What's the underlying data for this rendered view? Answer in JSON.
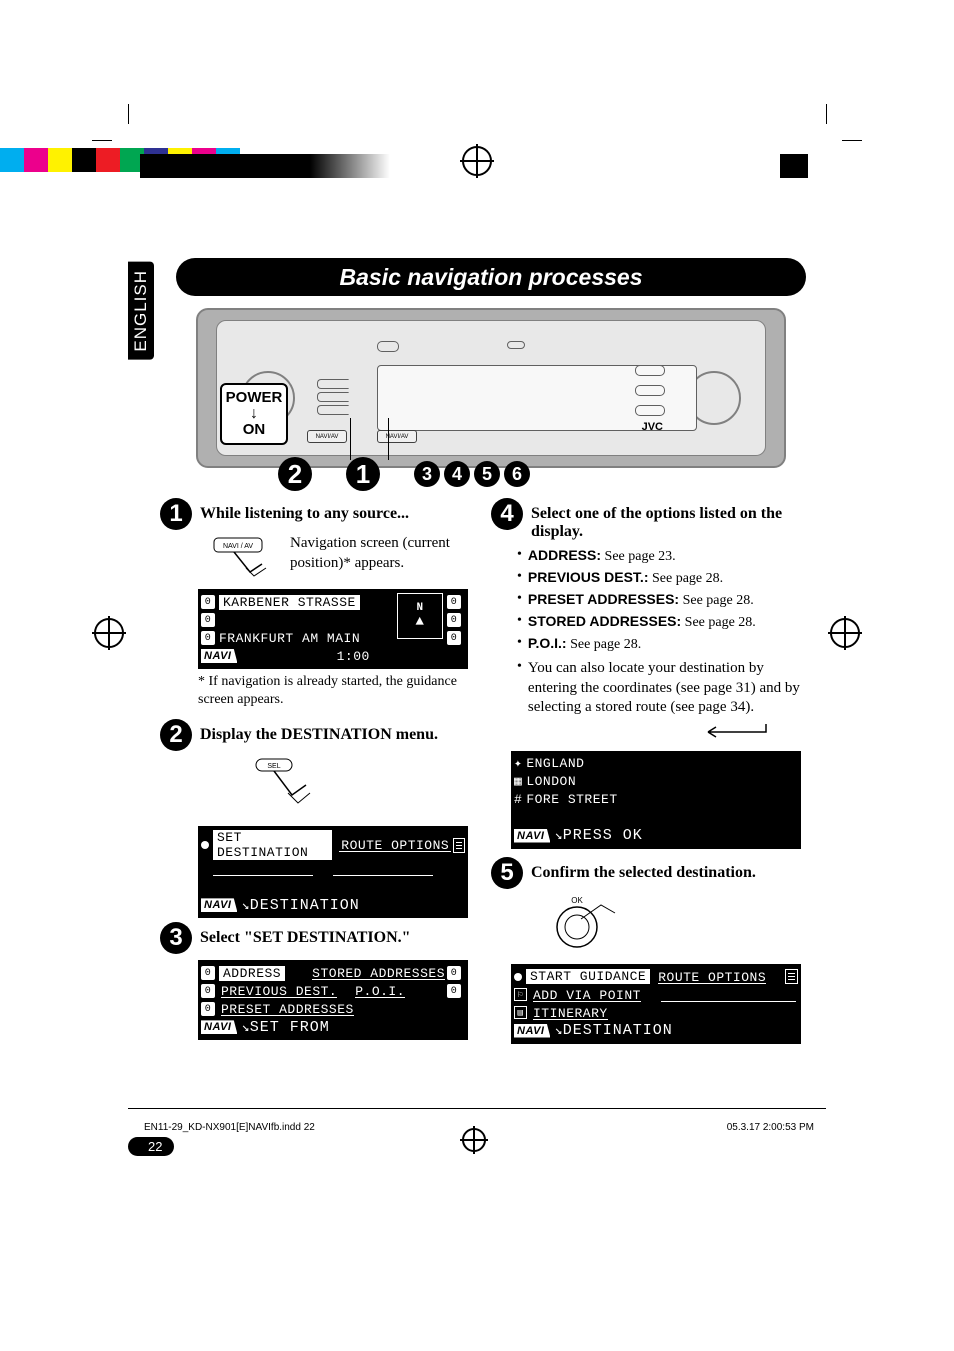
{
  "reg_colors": [
    "#00aeef",
    "#ec008c",
    "#fff200",
    "#000000",
    "#ed1c24",
    "#00a651",
    "#2e3192",
    "#fff200",
    "#ec008c",
    "#00aeef"
  ],
  "lang_tab": "ENGLISH",
  "page_title": "Basic navigation processes",
  "power_label": {
    "top": "POWER",
    "bottom": "ON"
  },
  "device": {
    "brand": "JVC",
    "navi_av": "NAVI/AV"
  },
  "top_circles": [
    "2",
    "1",
    "3",
    "4",
    "5",
    "6"
  ],
  "step1": {
    "num": "1",
    "title": "While listening to any source...",
    "navi_btn": "NAVI / AV",
    "sub": "Navigation screen (current position)* appears.",
    "lcd": {
      "street": "KARBENER STRASSE",
      "city": "FRANKFURT AM MAIN",
      "tag": "NAVI",
      "time": "1:00",
      "compass": "N"
    },
    "note": "* If navigation is already started, the guidance screen appears."
  },
  "step2": {
    "num": "2",
    "title": "Display the DESTINATION menu.",
    "sel_btn": "SEL",
    "lcd": {
      "item1": "SET DESTINATION",
      "item2": "ROUTE OPTIONS",
      "tag": "NAVI",
      "label": "DESTINATION"
    }
  },
  "step3": {
    "num": "3",
    "title": "Select \"SET DESTINATION.\"",
    "lcd": {
      "a": "ADDRESS",
      "b": "STORED ADDRESSES",
      "c": "PREVIOUS DEST.",
      "d": "P.O.I.",
      "e": "PRESET ADDRESSES",
      "tag": "NAVI",
      "label": "SET FROM"
    }
  },
  "step4": {
    "num": "4",
    "title": "Select one of the options listed on the display.",
    "options": [
      {
        "label": "ADDRESS:",
        "text": " See page 23."
      },
      {
        "label": "PREVIOUS DEST.:",
        "text": " See page 28."
      },
      {
        "label": "PRESET ADDRESSES:",
        "text": " See page 28."
      },
      {
        "label": "STORED ADDRESSES:",
        "text": " See page 28."
      },
      {
        "label": "P.O.I.:",
        "text": " See page 28."
      }
    ],
    "extra": "You can also locate your destination by entering the coordinates (see page 31) and by selecting a stored route (see page 34).",
    "lcd": {
      "a": "ENGLAND",
      "b": "LONDON",
      "c": "FORE STREET",
      "tag": "NAVI",
      "label": "PRESS OK"
    }
  },
  "step5": {
    "num": "5",
    "title": "Confirm the selected destination.",
    "ok_label": "OK",
    "lcd": {
      "a": "START GUIDANCE",
      "b": "ROUTE OPTIONS",
      "c": "ADD VIA POINT",
      "d": "ITINERARY",
      "tag": "NAVI",
      "label": "DESTINATION"
    }
  },
  "page_number": "22",
  "footer": {
    "file": "EN11-29_KD-NX901[E]NAVIfb.indd   22",
    "stamp": "05.3.17   2:00:53 PM"
  }
}
